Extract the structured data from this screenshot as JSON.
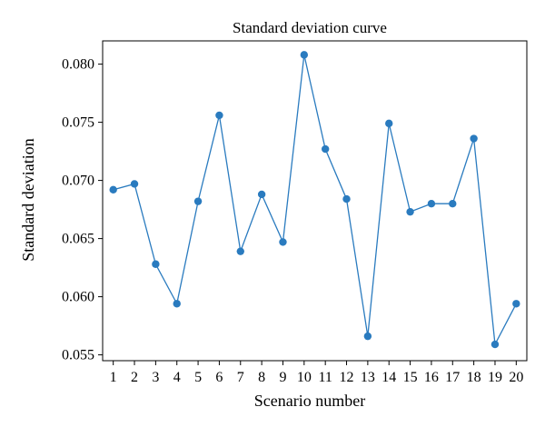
{
  "chart_data": {
    "type": "line",
    "title": "Standard deviation curve",
    "xlabel": "Scenario number",
    "ylabel": "Standard deviation",
    "x": [
      1,
      2,
      3,
      4,
      5,
      6,
      7,
      8,
      9,
      10,
      11,
      12,
      13,
      14,
      15,
      16,
      17,
      18,
      19,
      20
    ],
    "series": [
      {
        "values": [
          0.0692,
          0.0697,
          0.0628,
          0.0594,
          0.0682,
          0.0756,
          0.0639,
          0.0688,
          0.0647,
          0.0808,
          0.0727,
          0.0684,
          0.0566,
          0.0749,
          0.0673,
          0.068,
          0.068,
          0.0736,
          0.0559,
          0.0594
        ],
        "color": "#2a7bbf"
      }
    ],
    "xlim": [
      0.5,
      20.5
    ],
    "ylim": [
      0.0545,
      0.082
    ],
    "xticks": [
      "1",
      "2",
      "3",
      "4",
      "5",
      "6",
      "7",
      "8",
      "9",
      "10",
      "11",
      "12",
      "13",
      "14",
      "15",
      "16",
      "17",
      "18",
      "19",
      "20"
    ],
    "yticks": [
      "0.055",
      "0.060",
      "0.065",
      "0.070",
      "0.075",
      "0.080"
    ],
    "grid": false,
    "legend": "none"
  }
}
